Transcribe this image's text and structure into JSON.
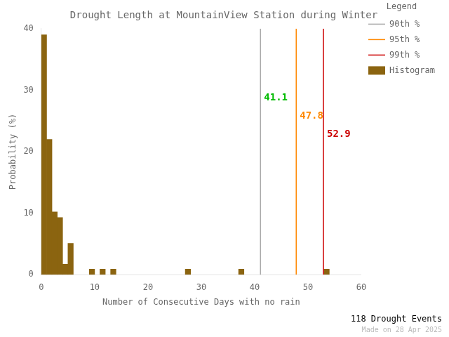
{
  "chart_data": {
    "type": "histogram",
    "title": "Drought Length at MountainView Station during Winter",
    "xlabel": "Number of Consecutive Days with no rain",
    "ylabel": "Probability (%)",
    "xlim": [
      0,
      60
    ],
    "ylim": [
      0,
      40
    ],
    "xticks": [
      0,
      10,
      20,
      30,
      40,
      50,
      60
    ],
    "yticks": [
      0,
      10,
      20,
      30,
      40
    ],
    "grid": false,
    "legend": "upper right",
    "legend_title": "Legend",
    "bins": [
      0,
      1,
      2,
      3,
      4,
      5,
      6,
      7,
      8,
      9,
      10,
      11,
      12,
      13,
      14,
      15,
      16,
      17,
      18,
      19,
      20,
      21,
      22,
      23,
      24,
      25,
      26,
      27,
      28,
      29,
      30,
      31,
      32,
      33,
      34,
      35,
      36,
      37,
      38,
      39,
      40,
      41,
      42,
      43,
      44,
      45,
      46,
      47,
      48,
      49,
      50,
      51,
      52,
      53,
      54,
      55,
      56,
      57,
      58,
      59,
      60
    ],
    "series": [
      {
        "name": "90th %",
        "type": "vline",
        "color": "#aaaaaa",
        "x": 41.1
      },
      {
        "name": "95th %",
        "type": "vline",
        "color": "#ff8800",
        "x": 47.8
      },
      {
        "name": "99th %",
        "type": "vline",
        "color": "#cc0000",
        "x": 52.9
      },
      {
        "name": "Histogram",
        "type": "bar",
        "color": "#8B6410",
        "values": [
          39.0,
          22.0,
          10.2,
          9.3,
          1.7,
          5.1,
          0.0,
          0.0,
          0.0,
          0.9,
          0.0,
          0.9,
          0.0,
          0.9,
          0.0,
          0.0,
          0.0,
          0.0,
          0.0,
          0.0,
          0.0,
          0.0,
          0.0,
          0.0,
          0.0,
          0.0,
          0.0,
          0.9,
          0.0,
          0.0,
          0.0,
          0.0,
          0.0,
          0.0,
          0.0,
          0.0,
          0.0,
          0.9,
          0.0,
          0.0,
          0.0,
          0.0,
          0.0,
          0.0,
          0.0,
          0.0,
          0.0,
          0.0,
          0.0,
          0.0,
          0.0,
          0.0,
          0.0,
          0.9,
          0.0,
          0.0,
          0.0,
          0.0,
          0.0,
          0.0
        ]
      }
    ],
    "annotations": [
      {
        "x": 41.1,
        "text": "41.1",
        "color": "#00bb00"
      },
      {
        "x": 47.8,
        "text": "47.8",
        "color": "#ff8800"
      },
      {
        "x": 52.9,
        "text": "52.9",
        "color": "#cc0000"
      },
      {
        "text": "118 Drought Events"
      },
      {
        "text": "Made on 28 Apr 2025",
        "color": "#bbbbbb"
      }
    ]
  }
}
